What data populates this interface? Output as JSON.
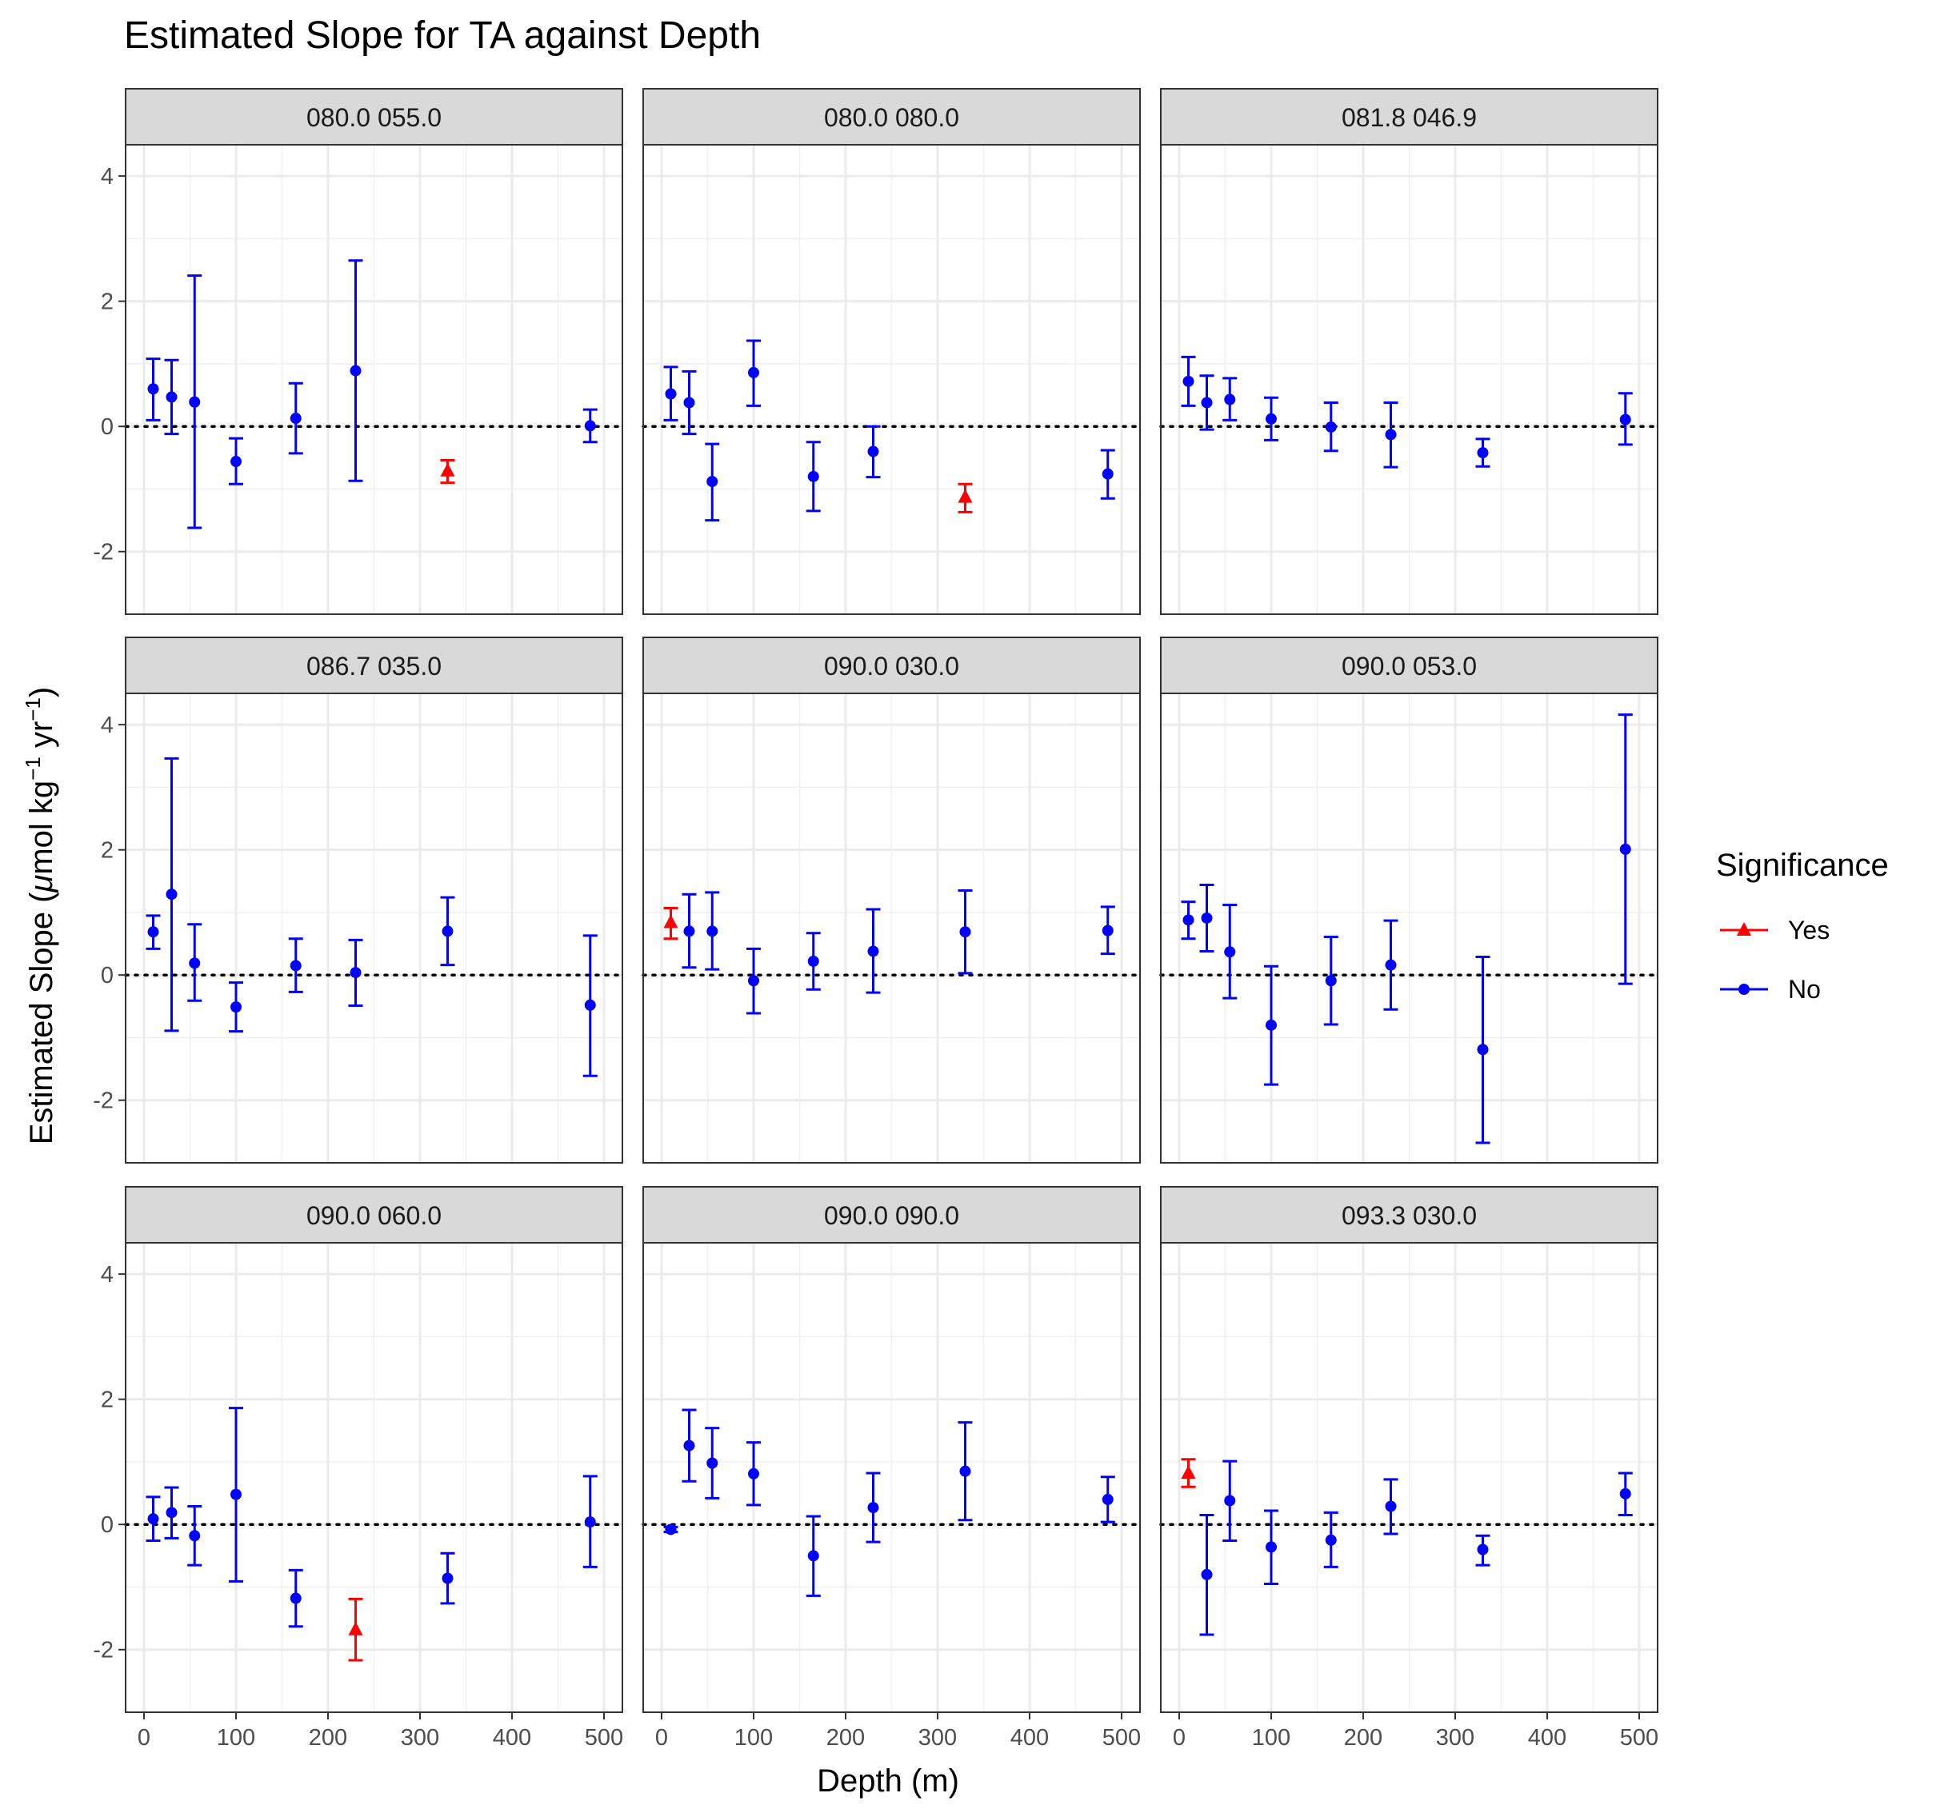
{
  "chart_data": {
    "type": "scatter",
    "title": "Estimated Slope for TA against Depth",
    "xlabel": "Depth (m)",
    "ylabel": {
      "prefix": "Estimated Slope (",
      "mu": "μ",
      "mol": "mol kg",
      "exp1": "−1",
      "yr": " yr",
      "exp2": "−1",
      "suffix": ")"
    },
    "xlim": [
      -20,
      520
    ],
    "ylim": [
      -3,
      4.5
    ],
    "x_ticks": [
      0,
      100,
      200,
      300,
      400,
      500
    ],
    "y_ticks": [
      -2,
      0,
      2,
      4
    ],
    "x_tick_labels": [
      "0",
      "100",
      "200",
      "300",
      "400",
      "500"
    ],
    "y_tick_labels": [
      "-2",
      "0",
      "2",
      "4"
    ],
    "grid": true,
    "reference_line": 0,
    "legend": {
      "title": "Significance",
      "position": "right",
      "entries": [
        {
          "label": "Yes",
          "color": "#ff0000",
          "shape": "triangle"
        },
        {
          "label": "No",
          "color": "#0000ff",
          "shape": "circle"
        }
      ]
    },
    "colors": {
      "Yes": "#ff0000",
      "No": "#0000ff"
    },
    "panels": [
      {
        "label": "080.0 055.0",
        "points": [
          {
            "x": 10,
            "y": 0.6,
            "lo": 0.1,
            "hi": 1.08,
            "sig": "No"
          },
          {
            "x": 30,
            "y": 0.47,
            "lo": -0.12,
            "hi": 1.06,
            "sig": "No"
          },
          {
            "x": 55,
            "y": 0.39,
            "lo": -1.62,
            "hi": 2.41,
            "sig": "No"
          },
          {
            "x": 100,
            "y": -0.56,
            "lo": -0.92,
            "hi": -0.19,
            "sig": "No"
          },
          {
            "x": 165,
            "y": 0.13,
            "lo": -0.43,
            "hi": 0.69,
            "sig": "No"
          },
          {
            "x": 230,
            "y": 0.89,
            "lo": -0.87,
            "hi": 2.65,
            "sig": "No"
          },
          {
            "x": 330,
            "y": -0.71,
            "lo": -0.9,
            "hi": -0.54,
            "sig": "Yes"
          },
          {
            "x": 485,
            "y": 0.01,
            "lo": -0.25,
            "hi": 0.27,
            "sig": "No"
          }
        ]
      },
      {
        "label": "080.0 080.0",
        "points": [
          {
            "x": 10,
            "y": 0.52,
            "lo": 0.1,
            "hi": 0.95,
            "sig": "No"
          },
          {
            "x": 30,
            "y": 0.38,
            "lo": -0.12,
            "hi": 0.88,
            "sig": "No"
          },
          {
            "x": 55,
            "y": -0.88,
            "lo": -1.5,
            "hi": -0.28,
            "sig": "No"
          },
          {
            "x": 100,
            "y": 0.86,
            "lo": 0.33,
            "hi": 1.37,
            "sig": "No"
          },
          {
            "x": 165,
            "y": -0.8,
            "lo": -1.35,
            "hi": -0.25,
            "sig": "No"
          },
          {
            "x": 230,
            "y": -0.4,
            "lo": -0.81,
            "hi": 0.0,
            "sig": "No"
          },
          {
            "x": 330,
            "y": -1.13,
            "lo": -1.37,
            "hi": -0.92,
            "sig": "Yes"
          },
          {
            "x": 485,
            "y": -0.76,
            "lo": -1.15,
            "hi": -0.38,
            "sig": "No"
          }
        ]
      },
      {
        "label": "081.8 046.9",
        "points": [
          {
            "x": 10,
            "y": 0.72,
            "lo": 0.33,
            "hi": 1.11,
            "sig": "No"
          },
          {
            "x": 30,
            "y": 0.38,
            "lo": -0.05,
            "hi": 0.81,
            "sig": "No"
          },
          {
            "x": 55,
            "y": 0.43,
            "lo": 0.1,
            "hi": 0.77,
            "sig": "No"
          },
          {
            "x": 100,
            "y": 0.12,
            "lo": -0.22,
            "hi": 0.46,
            "sig": "No"
          },
          {
            "x": 165,
            "y": -0.01,
            "lo": -0.39,
            "hi": 0.38,
            "sig": "No"
          },
          {
            "x": 230,
            "y": -0.13,
            "lo": -0.65,
            "hi": 0.38,
            "sig": "No"
          },
          {
            "x": 330,
            "y": -0.42,
            "lo": -0.64,
            "hi": -0.2,
            "sig": "No"
          },
          {
            "x": 485,
            "y": 0.11,
            "lo": -0.29,
            "hi": 0.53,
            "sig": "No"
          }
        ]
      },
      {
        "label": "086.7 035.0",
        "points": [
          {
            "x": 10,
            "y": 0.69,
            "lo": 0.42,
            "hi": 0.95,
            "sig": "No"
          },
          {
            "x": 30,
            "y": 1.29,
            "lo": -0.89,
            "hi": 3.46,
            "sig": "No"
          },
          {
            "x": 55,
            "y": 0.19,
            "lo": -0.41,
            "hi": 0.81,
            "sig": "No"
          },
          {
            "x": 100,
            "y": -0.51,
            "lo": -0.9,
            "hi": -0.12,
            "sig": "No"
          },
          {
            "x": 165,
            "y": 0.15,
            "lo": -0.27,
            "hi": 0.58,
            "sig": "No"
          },
          {
            "x": 230,
            "y": 0.04,
            "lo": -0.49,
            "hi": 0.56,
            "sig": "No"
          },
          {
            "x": 330,
            "y": 0.7,
            "lo": 0.16,
            "hi": 1.24,
            "sig": "No"
          },
          {
            "x": 485,
            "y": -0.48,
            "lo": -1.61,
            "hi": 0.63,
            "sig": "No"
          }
        ]
      },
      {
        "label": "090.0 030.0",
        "points": [
          {
            "x": 10,
            "y": 0.84,
            "lo": 0.58,
            "hi": 1.07,
            "sig": "Yes"
          },
          {
            "x": 30,
            "y": 0.7,
            "lo": 0.12,
            "hi": 1.29,
            "sig": "No"
          },
          {
            "x": 55,
            "y": 0.7,
            "lo": 0.09,
            "hi": 1.32,
            "sig": "No"
          },
          {
            "x": 100,
            "y": -0.09,
            "lo": -0.61,
            "hi": 0.42,
            "sig": "No"
          },
          {
            "x": 165,
            "y": 0.22,
            "lo": -0.23,
            "hi": 0.67,
            "sig": "No"
          },
          {
            "x": 230,
            "y": 0.38,
            "lo": -0.28,
            "hi": 1.05,
            "sig": "No"
          },
          {
            "x": 330,
            "y": 0.69,
            "lo": 0.03,
            "hi": 1.35,
            "sig": "No"
          },
          {
            "x": 485,
            "y": 0.71,
            "lo": 0.34,
            "hi": 1.09,
            "sig": "No"
          }
        ]
      },
      {
        "label": "090.0 053.0",
        "points": [
          {
            "x": 10,
            "y": 0.88,
            "lo": 0.58,
            "hi": 1.17,
            "sig": "No"
          },
          {
            "x": 30,
            "y": 0.91,
            "lo": 0.38,
            "hi": 1.44,
            "sig": "No"
          },
          {
            "x": 55,
            "y": 0.37,
            "lo": -0.37,
            "hi": 1.12,
            "sig": "No"
          },
          {
            "x": 100,
            "y": -0.8,
            "lo": -1.75,
            "hi": 0.14,
            "sig": "No"
          },
          {
            "x": 165,
            "y": -0.09,
            "lo": -0.79,
            "hi": 0.61,
            "sig": "No"
          },
          {
            "x": 230,
            "y": 0.16,
            "lo": -0.55,
            "hi": 0.87,
            "sig": "No"
          },
          {
            "x": 330,
            "y": -1.19,
            "lo": -2.68,
            "hi": 0.29,
            "sig": "No"
          },
          {
            "x": 485,
            "y": 2.01,
            "lo": -0.14,
            "hi": 4.16,
            "sig": "No"
          }
        ]
      },
      {
        "label": "090.0 060.0",
        "points": [
          {
            "x": 10,
            "y": 0.09,
            "lo": -0.26,
            "hi": 0.44,
            "sig": "No"
          },
          {
            "x": 30,
            "y": 0.19,
            "lo": -0.22,
            "hi": 0.59,
            "sig": "No"
          },
          {
            "x": 55,
            "y": -0.18,
            "lo": -0.65,
            "hi": 0.29,
            "sig": "No"
          },
          {
            "x": 100,
            "y": 0.48,
            "lo": -0.91,
            "hi": 1.86,
            "sig": "No"
          },
          {
            "x": 165,
            "y": -1.18,
            "lo": -1.63,
            "hi": -0.73,
            "sig": "No"
          },
          {
            "x": 230,
            "y": -1.68,
            "lo": -2.17,
            "hi": -1.19,
            "sig": "Yes"
          },
          {
            "x": 330,
            "y": -0.86,
            "lo": -1.26,
            "hi": -0.46,
            "sig": "No"
          },
          {
            "x": 485,
            "y": 0.04,
            "lo": -0.68,
            "hi": 0.77,
            "sig": "No"
          }
        ]
      },
      {
        "label": "090.0 090.0",
        "points": [
          {
            "x": 10,
            "y": -0.08,
            "lo": -0.12,
            "hi": -0.04,
            "sig": "No"
          },
          {
            "x": 30,
            "y": 1.26,
            "lo": 0.69,
            "hi": 1.83,
            "sig": "No"
          },
          {
            "x": 55,
            "y": 0.98,
            "lo": 0.42,
            "hi": 1.54,
            "sig": "No"
          },
          {
            "x": 100,
            "y": 0.81,
            "lo": 0.31,
            "hi": 1.31,
            "sig": "No"
          },
          {
            "x": 165,
            "y": -0.5,
            "lo": -1.14,
            "hi": 0.13,
            "sig": "No"
          },
          {
            "x": 230,
            "y": 0.27,
            "lo": -0.28,
            "hi": 0.82,
            "sig": "No"
          },
          {
            "x": 330,
            "y": 0.85,
            "lo": 0.07,
            "hi": 1.63,
            "sig": "No"
          },
          {
            "x": 485,
            "y": 0.4,
            "lo": 0.04,
            "hi": 0.76,
            "sig": "No"
          }
        ]
      },
      {
        "label": "093.3 030.0",
        "points": [
          {
            "x": 10,
            "y": 0.82,
            "lo": 0.6,
            "hi": 1.04,
            "sig": "Yes"
          },
          {
            "x": 30,
            "y": -0.8,
            "lo": -1.76,
            "hi": 0.15,
            "sig": "No"
          },
          {
            "x": 55,
            "y": 0.38,
            "lo": -0.26,
            "hi": 1.01,
            "sig": "No"
          },
          {
            "x": 100,
            "y": -0.36,
            "lo": -0.95,
            "hi": 0.22,
            "sig": "No"
          },
          {
            "x": 165,
            "y": -0.25,
            "lo": -0.68,
            "hi": 0.19,
            "sig": "No"
          },
          {
            "x": 230,
            "y": 0.29,
            "lo": -0.15,
            "hi": 0.72,
            "sig": "No"
          },
          {
            "x": 330,
            "y": -0.4,
            "lo": -0.65,
            "hi": -0.18,
            "sig": "No"
          },
          {
            "x": 485,
            "y": 0.49,
            "lo": 0.15,
            "hi": 0.82,
            "sig": "No"
          }
        ]
      }
    ]
  }
}
